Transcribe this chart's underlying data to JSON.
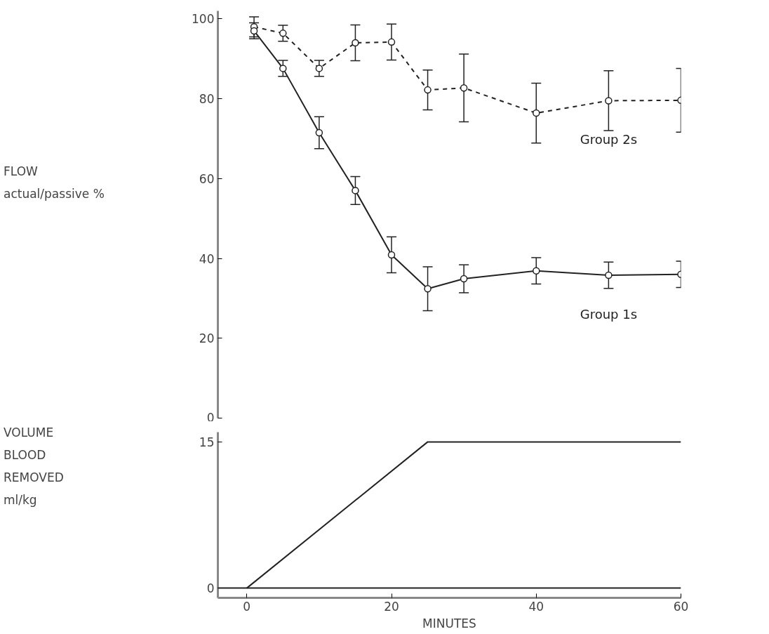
{
  "chart_data": [
    {
      "type": "line",
      "ylabel": "FLOW\nactual/passive %",
      "xlim": [
        -4,
        60
      ],
      "ylim": [
        0,
        102
      ],
      "yticks": [
        0,
        20,
        40,
        60,
        80,
        100
      ],
      "tick_labels": "y",
      "grid": false,
      "marker": "circle",
      "x": [
        1,
        5,
        10,
        15,
        20,
        25,
        30,
        40,
        50,
        60
      ],
      "series": [
        {
          "name": "Group 2s",
          "color": "#222222",
          "line_style": "dashed",
          "values": [
            98,
            96.4,
            87.6,
            94,
            94.2,
            82.2,
            82.7,
            76.4,
            79.5,
            79.6
          ],
          "errors": [
            2.5,
            2,
            2,
            4.5,
            4.5,
            5,
            8.5,
            7.5,
            7.5,
            8
          ]
        },
        {
          "name": "Group 1s",
          "color": "#222222",
          "line_style": "solid",
          "values": [
            97,
            87.6,
            71.5,
            57,
            40.9,
            32.4,
            34.9,
            36.9,
            35.8,
            36
          ],
          "errors": [
            2,
            2,
            4,
            3.5,
            4.5,
            5.5,
            3.5,
            3.3,
            3.3,
            3.3
          ]
        }
      ]
    },
    {
      "type": "line",
      "ylabel": "VOLUME\nBLOOD\nREMOVED\nml/kg",
      "xlabel": "MINUTES",
      "xlim": [
        -4,
        60
      ],
      "xticks": [
        0,
        20,
        40,
        60
      ],
      "ylim": [
        -1,
        16
      ],
      "yticks": [
        0,
        15
      ],
      "grid": false,
      "marker": "none",
      "series": [
        {
          "color": "#222222",
          "x": [
            0,
            25,
            60
          ],
          "values": [
            0,
            15,
            15
          ]
        }
      ],
      "ref_lines": [
        {
          "axis": "y",
          "value": 0,
          "color": "#222222"
        }
      ]
    }
  ]
}
